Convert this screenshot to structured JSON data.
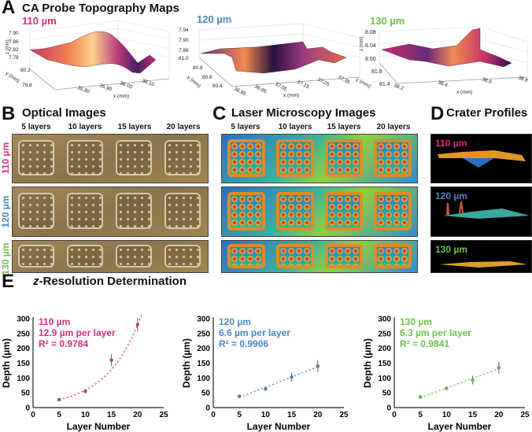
{
  "colors": {
    "c110": "#d6307a",
    "c120": "#4a86c8",
    "c130": "#6cc04a"
  },
  "panel_a": {
    "letter": "A",
    "title": "CA Probe Topography Maps",
    "plots": [
      {
        "label": "110 µm",
        "z_ticks": [
          "7.90",
          "7.86",
          "7.82",
          "7.78"
        ],
        "y_ticks": [
          "80.2",
          "79.8"
        ],
        "x_ticks": [
          "35.80",
          "35.90",
          "36.00",
          "36.10"
        ],
        "zlabel": "z (mm)",
        "ylabel": "y (mm)",
        "xlabel": "x (mm)"
      },
      {
        "label": "120 µm",
        "z_ticks": [
          "7.94",
          "7.90",
          "7.86",
          "81.0"
        ],
        "y_ticks": [
          "80.8",
          "80.6",
          "80.4"
        ],
        "x_ticks": [
          "36.85",
          "36.95",
          "37.05",
          "37.15",
          "37.25",
          "37.35"
        ],
        "zlabel": "z (mm)",
        "ylabel": "y (mm)",
        "xlabel": "x (mm)"
      },
      {
        "label": "130 µm",
        "z_ticks": [
          "8.08",
          "8.04",
          "8.00"
        ],
        "y_ticks": [
          "81.8",
          "81.4"
        ],
        "x_ticks": [
          "38.2",
          "38.4",
          "38.6",
          "38.8"
        ],
        "zlabel": "z (mm)",
        "ylabel": "y (mm)",
        "xlabel": "x (mm)"
      }
    ]
  },
  "panel_b": {
    "letter": "B",
    "title": "Optical Images"
  },
  "panel_c": {
    "letter": "C",
    "title": "Laser Microscopy Images"
  },
  "panel_d": {
    "letter": "D",
    "title": "Crater Profiles"
  },
  "columns": [
    "5 layers",
    "10 layers",
    "15 layers",
    "20 layers"
  ],
  "rows": [
    "110 µm",
    "120 µm",
    "130 µm"
  ],
  "panel_e": {
    "letter": "E",
    "title_italic": "z",
    "title_rest": "-Resolution Determination"
  },
  "chart_data": [
    {
      "type": "scatter",
      "name": "110 µm",
      "annotation": [
        "110 µm",
        "12.9 µm per layer",
        "R² = 0.9784"
      ],
      "color": "#d6307a",
      "fit": "exponential",
      "x": [
        5,
        10,
        15,
        20
      ],
      "y": [
        27,
        55,
        160,
        280
      ],
      "err": [
        3,
        8,
        20,
        22
      ],
      "xlabel": "Layer Number",
      "ylabel": "Depth (µm)",
      "xlim": [
        0,
        25
      ],
      "ylim": [
        0,
        300
      ],
      "xticks": [
        "0",
        "5",
        "10",
        "15",
        "20",
        "25"
      ],
      "yticks": [
        "0",
        "50",
        "100",
        "150",
        "200",
        "250",
        "300"
      ]
    },
    {
      "type": "scatter",
      "name": "120 µm",
      "annotation": [
        "120 µm",
        "6.6 µm per layer",
        "R² = 0.9906"
      ],
      "color": "#4a86c8",
      "fit": "linear",
      "x": [
        5,
        10,
        15,
        20
      ],
      "y": [
        38,
        63,
        103,
        140
      ],
      "err": [
        4,
        6,
        15,
        20
      ],
      "xlabel": "Layer Number",
      "ylabel": "Depth (µm)",
      "xlim": [
        0,
        25
      ],
      "ylim": [
        0,
        300
      ],
      "xticks": [
        "0",
        "5",
        "10",
        "15",
        "20",
        "25"
      ],
      "yticks": [
        "0",
        "50",
        "100",
        "150",
        "200",
        "250",
        "300"
      ]
    },
    {
      "type": "scatter",
      "name": "130 µm",
      "annotation": [
        "130 µm",
        "6.3 µm per layer",
        "R² = 0.9841"
      ],
      "color": "#6cc04a",
      "fit": "linear",
      "x": [
        5,
        10,
        15,
        20
      ],
      "y": [
        36,
        65,
        93,
        135
      ],
      "err": [
        2,
        5,
        15,
        20
      ],
      "xlabel": "Layer Number",
      "ylabel": "Depth (µm)",
      "xlim": [
        0,
        25
      ],
      "ylim": [
        0,
        300
      ],
      "xticks": [
        "0",
        "5",
        "10",
        "15",
        "20",
        "25"
      ],
      "yticks": [
        "0",
        "50",
        "100",
        "150",
        "200",
        "250",
        "300"
      ]
    }
  ]
}
